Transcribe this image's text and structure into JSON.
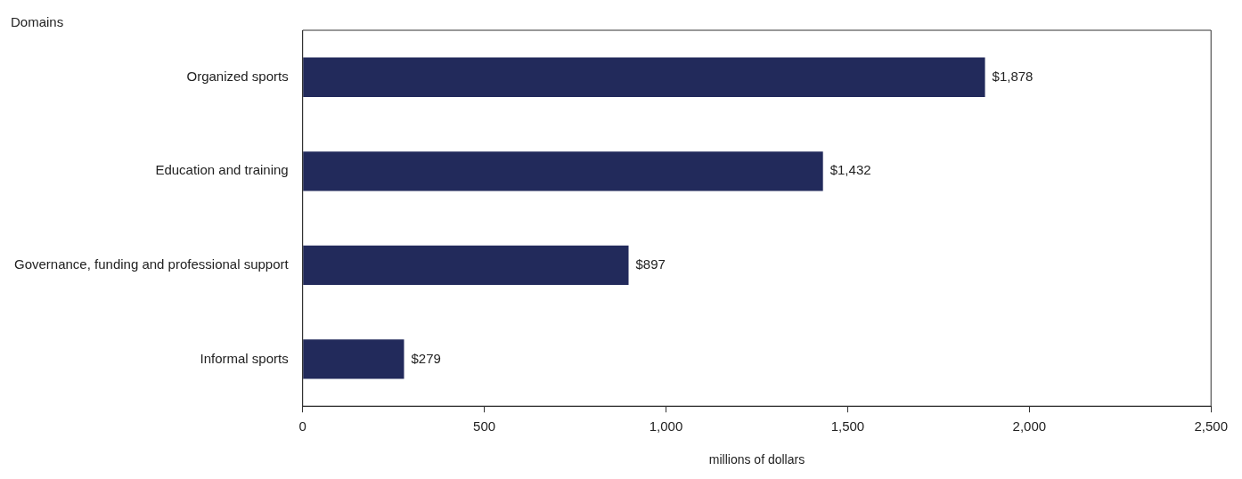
{
  "chart_data": {
    "type": "bar",
    "orientation": "horizontal",
    "ylabel": "Domains",
    "xlabel": "millions of dollars",
    "categories": [
      "Organized sports",
      "Education and training",
      "Governance, funding and professional support",
      "Informal sports"
    ],
    "values": [
      1878,
      1432,
      897,
      279
    ],
    "value_labels": [
      "$1,878",
      "$1,432",
      "$897",
      "$279"
    ],
    "color": "#222a5b",
    "xlim": [
      0,
      2500
    ],
    "xticks": [
      0,
      500,
      {
        "value": 1000,
        "label": "1,000"
      },
      {
        "value": 1500,
        "label": "1,500"
      },
      {
        "value": 2000,
        "label": "2,000"
      },
      {
        "value": 2500,
        "label": "2,500"
      }
    ],
    "grid": false,
    "legend": false
  }
}
